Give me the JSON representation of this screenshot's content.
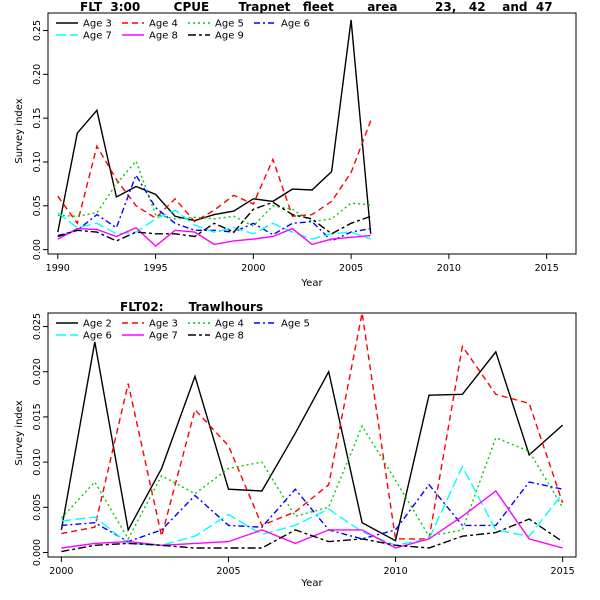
{
  "chart_data": [
    {
      "type": "line",
      "title": "FLT  3:00        CPUE       Trapnet   fleet        area         23,   42    and  47",
      "xlabel": "Year",
      "ylabel": "Survey index",
      "xlim": [
        1989.5,
        2016.5
      ],
      "ylim": [
        -0.005,
        0.27
      ],
      "xticks": [
        1990,
        1995,
        2000,
        2005,
        2010,
        2015
      ],
      "yticks": [
        0.0,
        0.05,
        0.1,
        0.15,
        0.2,
        0.25
      ],
      "ytick_labels": [
        "0.00",
        "0.05",
        "0.10",
        "0.15",
        "0.20",
        "0.25"
      ],
      "legend_position": "top-left",
      "x": [
        1990,
        1991,
        1992,
        1993,
        1994,
        1995,
        1996,
        1997,
        1998,
        1999,
        2000,
        2001,
        2002,
        2003,
        2004,
        2005,
        2006
      ],
      "series": [
        {
          "name": "Age 3",
          "color": "#000000",
          "dash": "solid",
          "values": [
            0.02,
            0.133,
            0.159,
            0.06,
            0.072,
            0.063,
            0.038,
            0.033,
            0.04,
            0.044,
            0.058,
            0.055,
            0.069,
            0.068,
            0.089,
            0.262,
            0.018
          ]
        },
        {
          "name": "Age 4",
          "color": "#ff0000",
          "dash": "dashed",
          "values": [
            0.061,
            0.03,
            0.118,
            0.08,
            0.05,
            0.036,
            0.058,
            0.032,
            0.045,
            0.062,
            0.052,
            0.103,
            0.038,
            0.04,
            0.055,
            0.088,
            0.147
          ]
        },
        {
          "name": "Age 5",
          "color": "#00cc00",
          "dash": "dotted",
          "values": [
            0.039,
            0.038,
            0.042,
            0.075,
            0.101,
            0.04,
            0.035,
            0.037,
            0.035,
            0.038,
            0.027,
            0.05,
            0.046,
            0.032,
            0.035,
            0.053,
            0.051
          ]
        },
        {
          "name": "Age 6",
          "color": "#0000ff",
          "dash": "dashdot",
          "values": [
            0.016,
            0.022,
            0.04,
            0.025,
            0.085,
            0.048,
            0.03,
            0.022,
            0.022,
            0.02,
            0.03,
            0.017,
            0.03,
            0.032,
            0.01,
            0.02,
            0.024
          ]
        },
        {
          "name": "Age 7",
          "color": "#00ffff",
          "dash": "longdash",
          "values": [
            0.042,
            0.025,
            0.03,
            0.018,
            0.02,
            0.035,
            0.045,
            0.028,
            0.02,
            0.025,
            0.018,
            0.03,
            0.02,
            0.012,
            0.018,
            0.02,
            0.012
          ]
        },
        {
          "name": "Age 8",
          "color": "#ff00ff",
          "dash": "solid",
          "values": [
            0.012,
            0.024,
            0.023,
            0.015,
            0.025,
            0.004,
            0.022,
            0.02,
            0.006,
            0.01,
            0.012,
            0.015,
            0.024,
            0.006,
            0.012,
            0.014,
            0.016
          ]
        },
        {
          "name": "Age 9",
          "color": "#000000",
          "dash": "twodash",
          "values": [
            0.015,
            0.022,
            0.02,
            0.01,
            0.02,
            0.018,
            0.018,
            0.015,
            0.03,
            0.02,
            0.046,
            0.054,
            0.04,
            0.035,
            0.018,
            0.03,
            0.038
          ]
        }
      ]
    },
    {
      "type": "line",
      "title": "FLT02:      Trawlhours",
      "xlabel": "Year",
      "ylabel": "Survey index",
      "xlim": [
        1999.6,
        2015.4
      ],
      "ylim": [
        -0.0005,
        0.0265
      ],
      "xticks": [
        2000,
        2005,
        2010,
        2015
      ],
      "yticks": [
        0.0,
        0.005,
        0.01,
        0.015,
        0.02,
        0.025
      ],
      "ytick_labels": [
        "0.000",
        "0.005",
        "0.010",
        "0.015",
        "0.020",
        "0.025"
      ],
      "legend_position": "top-left",
      "x": [
        2000,
        2001,
        2002,
        2003,
        2004,
        2005,
        2006,
        2007,
        2008,
        2009,
        2010,
        2011,
        2012,
        2013,
        2014,
        2015
      ],
      "series": [
        {
          "name": "Age 2",
          "color": "#000000",
          "dash": "solid",
          "values": [
            0.0025,
            0.0233,
            0.0025,
            0.0093,
            0.0195,
            0.007,
            0.0068,
            0.0132,
            0.02,
            0.0033,
            0.0013,
            0.0174,
            0.0175,
            0.0222,
            0.0108,
            0.0141
          ]
        },
        {
          "name": "Age 3",
          "color": "#ff0000",
          "dash": "dashed",
          "values": [
            0.0021,
            0.0028,
            0.0187,
            0.0018,
            0.0158,
            0.0118,
            0.003,
            0.0045,
            0.0075,
            0.0265,
            0.0015,
            0.0015,
            0.0228,
            0.0175,
            0.0165,
            0.0055
          ]
        },
        {
          "name": "Age 4",
          "color": "#00cc00",
          "dash": "dotted",
          "values": [
            0.0038,
            0.0078,
            0.0015,
            0.0085,
            0.0065,
            0.0093,
            0.01,
            0.004,
            0.005,
            0.014,
            0.008,
            0.0018,
            0.0025,
            0.0127,
            0.0112,
            0.005
          ]
        },
        {
          "name": "Age 5",
          "color": "#0000ff",
          "dash": "dashdot",
          "values": [
            0.003,
            0.0033,
            0.0012,
            0.0025,
            0.0063,
            0.003,
            0.0028,
            0.007,
            0.0025,
            0.0015,
            0.0025,
            0.0075,
            0.003,
            0.003,
            0.0078,
            0.007
          ]
        },
        {
          "name": "Age 6",
          "color": "#00ffff",
          "dash": "longdash",
          "values": [
            0.0035,
            0.0039,
            0.001,
            0.0008,
            0.0018,
            0.0042,
            0.002,
            0.003,
            0.0048,
            0.0023,
            0.0008,
            0.0015,
            0.0095,
            0.0025,
            0.0018,
            0.0065
          ]
        },
        {
          "name": "Age 7",
          "color": "#ff00ff",
          "dash": "solid",
          "values": [
            0.0005,
            0.001,
            0.0012,
            0.0008,
            0.001,
            0.0012,
            0.0025,
            0.001,
            0.0025,
            0.0025,
            0.0005,
            0.0015,
            0.004,
            0.0068,
            0.0015,
            0.0005
          ]
        },
        {
          "name": "Age 8",
          "color": "#000000",
          "dash": "twodash",
          "values": [
            0.0001,
            0.0008,
            0.001,
            0.0008,
            0.0005,
            0.0005,
            0.0005,
            0.0025,
            0.0012,
            0.0015,
            0.0008,
            0.0005,
            0.0018,
            0.0022,
            0.0037,
            0.0012
          ]
        }
      ]
    }
  ]
}
